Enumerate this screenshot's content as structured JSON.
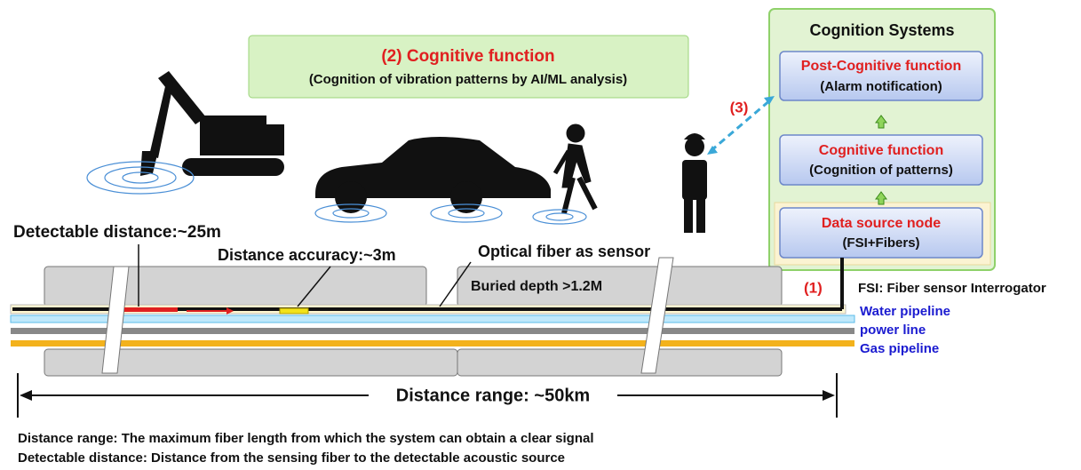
{
  "banner": {
    "title": "(2) Cognitive function",
    "subtitle": "(Cognition of vibration patterns by AI/ML analysis)"
  },
  "cognition_systems": {
    "title": "Cognition Systems",
    "nodes": [
      {
        "label": "Post-Cognitive function",
        "detail": "(Alarm notification)"
      },
      {
        "label": "Cognitive function",
        "detail": "(Cognition of patterns)"
      },
      {
        "label": "Data source node",
        "detail": "(FSI+Fibers)"
      }
    ]
  },
  "markers": {
    "step3": "(3)",
    "step1": "(1)"
  },
  "fsi_note": "FSI: Fiber sensor Interrogator",
  "labels": {
    "detectable": "Detectable distance:~25m",
    "accuracy": "Distance accuracy:~3m",
    "fiber": "Optical fiber as sensor",
    "depth": "Buried depth >1.2M",
    "range": "Distance range: ~50km"
  },
  "lines": [
    "Water pipeline",
    "power line",
    "Gas pipeline"
  ],
  "footnotes": [
    "Distance range: The maximum fiber length from which the system can obtain a clear signal",
    "Detectable distance: Distance from the sensing fiber to the detectable acoustic source"
  ]
}
